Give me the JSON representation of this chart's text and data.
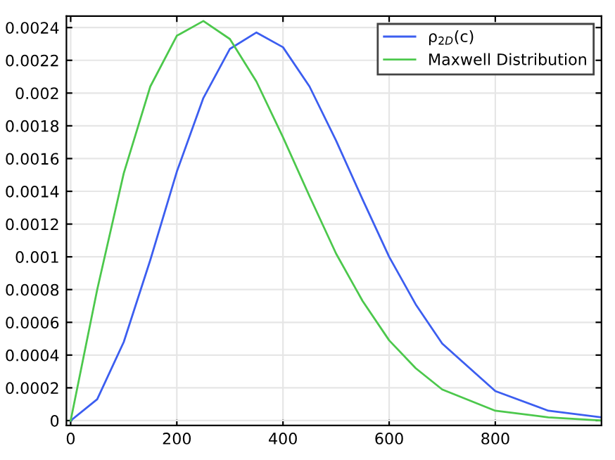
{
  "chart_data": {
    "type": "line",
    "x": [
      0,
      50,
      100,
      150,
      200,
      250,
      300,
      350,
      400,
      450,
      500,
      550,
      600,
      650,
      700,
      800,
      900,
      1000
    ],
    "series": [
      {
        "name": "ρ$_{2D}$(c)",
        "color": "#3c5ef0",
        "values": [
          0,
          0.00013,
          0.00048,
          0.00098,
          0.00152,
          0.00197,
          0.00227,
          0.00237,
          0.00228,
          0.00204,
          0.00171,
          0.00135,
          0.001,
          0.00071,
          0.00047,
          0.00018,
          6e-05,
          2e-05
        ]
      },
      {
        "name": "Maxwell Distribution",
        "color": "#4cc84c",
        "values": [
          0,
          0.0008,
          0.00151,
          0.00204,
          0.00235,
          0.00244,
          0.00233,
          0.00207,
          0.00173,
          0.00137,
          0.00102,
          0.00073,
          0.00049,
          0.00032,
          0.00019,
          6e-05,
          2e-05,
          0
        ]
      }
    ],
    "xlim": [
      -8,
      1000
    ],
    "xticks": [
      0,
      200,
      400,
      600,
      800
    ],
    "ylim": [
      -3e-05,
      0.00247
    ],
    "yticks": [
      0,
      0.0002,
      0.0004,
      0.0006,
      0.0008,
      0.001,
      0.0012,
      0.0014,
      0.0016,
      0.0018,
      0.002,
      0.0022,
      0.0024
    ],
    "grid": true,
    "legend": "top right",
    "line_style": "solid",
    "marker": "none"
  }
}
